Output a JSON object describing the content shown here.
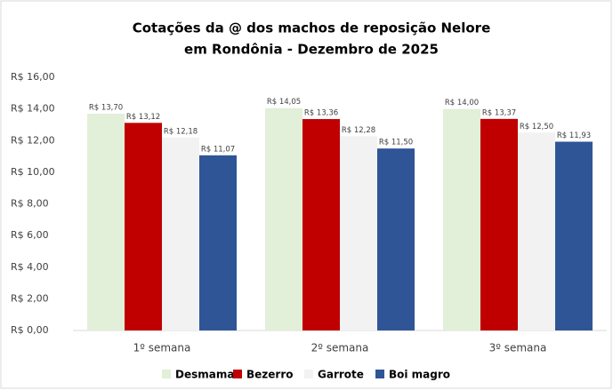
{
  "chart_data": {
    "type": "bar",
    "title": [
      "Cotações da @ dos machos de reposição Nelore",
      "em Rondônia - Dezembro de 2025"
    ],
    "categories": [
      "1º semana",
      "2º semana",
      "3º semana"
    ],
    "series": [
      {
        "name": "Desmama",
        "color": "#e2efd9",
        "values": [
          13.7,
          14.05,
          14.0
        ],
        "value_labels": [
          "R$ 13,70",
          "R$ 14,05",
          "R$ 14,00"
        ]
      },
      {
        "name": "Bezerro",
        "color": "#c00000",
        "values": [
          13.12,
          13.36,
          13.37
        ],
        "value_labels": [
          "R$ 13,12",
          "R$ 13,36",
          "R$ 13,37"
        ]
      },
      {
        "name": "Garrote",
        "color": "#f2f2f2",
        "values": [
          12.18,
          12.28,
          12.5
        ],
        "value_labels": [
          "R$ 12,18",
          "R$ 12,28",
          "R$ 12,50"
        ]
      },
      {
        "name": "Boi magro",
        "color": "#2f5597",
        "values": [
          11.07,
          11.5,
          11.93
        ],
        "value_labels": [
          "R$ 11,07",
          "R$ 11,50",
          "R$ 11,93"
        ]
      }
    ],
    "ylim": [
      0,
      16
    ],
    "yticks": [
      {
        "value": 0,
        "label": "R$ 0,00"
      },
      {
        "value": 2,
        "label": "R$ 2,00"
      },
      {
        "value": 4,
        "label": "R$ 4,00"
      },
      {
        "value": 6,
        "label": "R$ 6,00"
      },
      {
        "value": 8,
        "label": "R$ 8,00"
      },
      {
        "value": 10,
        "label": "R$ 10,00"
      },
      {
        "value": 12,
        "label": "R$ 12,00"
      },
      {
        "value": 14,
        "label": "R$ 14,00"
      },
      {
        "value": 16,
        "label": "R$ 16,00"
      }
    ],
    "grid": false,
    "legend": "bottom"
  }
}
